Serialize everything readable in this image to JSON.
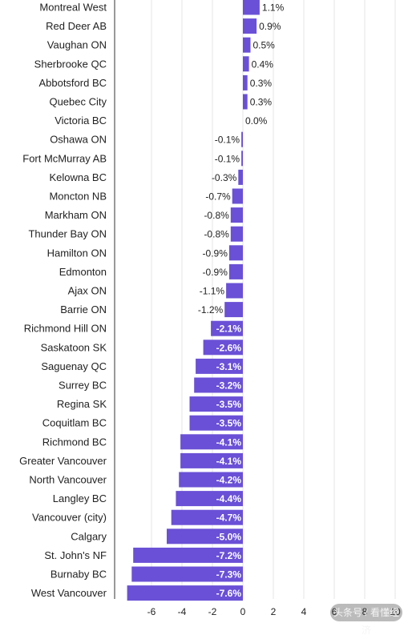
{
  "chart_data": {
    "type": "bar",
    "orientation": "horizontal",
    "categories": [
      "Montreal West",
      "Red Deer AB",
      "Vaughan ON",
      "Sherbrooke QC",
      "Abbotsford BC",
      "Quebec City",
      "Victoria BC",
      "Oshawa ON",
      "Fort McMurray AB",
      "Kelowna BC",
      "Moncton NB",
      "Markham ON",
      "Thunder Bay ON",
      "Hamilton ON",
      "Edmonton",
      "Ajax ON",
      "Barrie ON",
      "Richmond Hill ON",
      "Saskatoon SK",
      "Saguenay QC",
      "Surrey BC",
      "Regina SK",
      "Coquitlam BC",
      "Richmond BC",
      "Greater Vancouver",
      "North Vancouver",
      "Langley BC",
      "Vancouver (city)",
      "Calgary",
      "St. John's NF",
      "Burnaby BC",
      "West Vancouver"
    ],
    "values": [
      1.1,
      0.9,
      0.5,
      0.4,
      0.3,
      0.3,
      0.0,
      -0.1,
      -0.1,
      -0.3,
      -0.7,
      -0.8,
      -0.8,
      -0.9,
      -0.9,
      -1.1,
      -1.2,
      -2.1,
      -2.6,
      -3.1,
      -3.2,
      -3.5,
      -3.5,
      -4.1,
      -4.1,
      -4.2,
      -4.4,
      -4.7,
      -5.0,
      -7.2,
      -7.3,
      -7.6
    ],
    "value_labels": [
      "1.1%",
      "0.9%",
      "0.5%",
      "0.4%",
      "0.3%",
      "0.3%",
      "0.0%",
      "-0.1%",
      "-0.1%",
      "-0.3%",
      "-0.7%",
      "-0.8%",
      "-0.8%",
      "-0.9%",
      "-0.9%",
      "-1.1%",
      "-1.2%",
      "-2.1%",
      "-2.6%",
      "-3.1%",
      "-3.2%",
      "-3.5%",
      "-3.5%",
      "-4.1%",
      "-4.1%",
      "-4.2%",
      "-4.4%",
      "-4.7%",
      "-5.0%",
      "-7.2%",
      "-7.3%",
      "-7.6%"
    ],
    "xticks": [
      -6,
      -4,
      -2,
      0,
      2,
      4,
      6,
      8,
      10
    ],
    "xtick_labels": [
      "-6",
      "-4",
      "-2",
      "0",
      "2",
      "4",
      "6",
      "8",
      "10"
    ],
    "xlim": [
      -7.6,
      10
    ],
    "grid": "vertical",
    "colors": {
      "bar": "#6a50d6",
      "grid": "#e6e6e6",
      "axis": "#333333",
      "label_inside": "#ffffff",
      "label_outside": "#222222"
    }
  },
  "watermark": {
    "text": "头条号 / 看懂经济"
  }
}
